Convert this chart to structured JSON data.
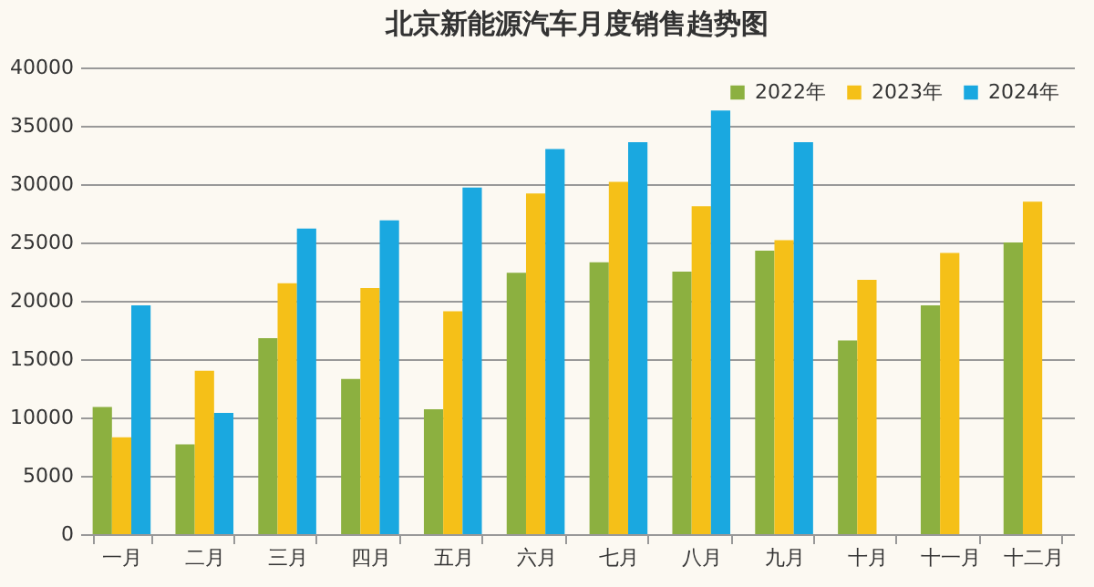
{
  "chart_data": {
    "type": "bar",
    "title": "北京新能源汽车月度销售趋势图",
    "categories": [
      "一月",
      "二月",
      "三月",
      "四月",
      "五月",
      "六月",
      "七月",
      "八月",
      "九月",
      "十月",
      "十一月",
      "十二月"
    ],
    "series": [
      {
        "name": "2022年",
        "color": "#8cb040",
        "values": [
          10900,
          7700,
          16800,
          13300,
          10700,
          22400,
          23300,
          22500,
          24300,
          16600,
          19600,
          25000
        ]
      },
      {
        "name": "2023年",
        "color": "#f5c018",
        "values": [
          8300,
          14000,
          21500,
          21100,
          19100,
          29200,
          30200,
          28100,
          25200,
          21800,
          24100,
          28500
        ]
      },
      {
        "name": "2024年",
        "color": "#1aa8e0",
        "values": [
          19600,
          10400,
          26200,
          26900,
          29700,
          33000,
          33600,
          36300,
          33600,
          null,
          null,
          null
        ]
      }
    ],
    "ylim": [
      0,
      40000
    ],
    "yticks": [
      0,
      5000,
      10000,
      15000,
      20000,
      25000,
      30000,
      35000,
      40000
    ],
    "grid": "y",
    "legend": "top right"
  }
}
